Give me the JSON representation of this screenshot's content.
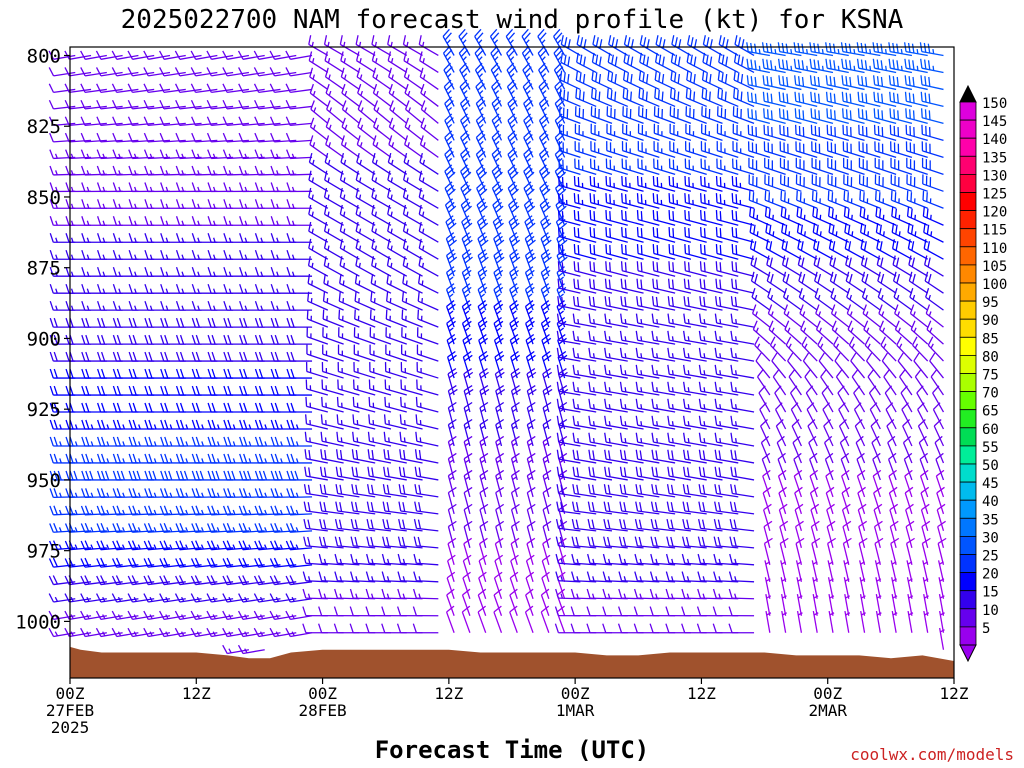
{
  "chart_data": {
    "type": "wind-barb-profile",
    "title": "2025022700 NAM forecast wind profile (kt) for KSNA",
    "xlabel": "Forecast Time (UTC)",
    "credit": "coolwx.com/models",
    "y_ticks": [
      "800",
      "825",
      "850",
      "875",
      "900",
      "925",
      "950",
      "975",
      "1000"
    ],
    "y_tick_values": [
      800,
      825,
      850,
      875,
      900,
      925,
      950,
      975,
      1000
    ],
    "x_ticks": [
      {
        "hour": 0,
        "lines": [
          "00Z",
          "27FEB",
          "2025"
        ]
      },
      {
        "hour": 12,
        "lines": [
          "12Z"
        ]
      },
      {
        "hour": 24,
        "lines": [
          "00Z",
          "28FEB"
        ]
      },
      {
        "hour": 36,
        "lines": [
          "12Z"
        ]
      },
      {
        "hour": 48,
        "lines": [
          "00Z",
          "1MAR"
        ]
      },
      {
        "hour": 60,
        "lines": [
          "12Z"
        ]
      },
      {
        "hour": 72,
        "lines": [
          "00Z",
          "2MAR"
        ]
      },
      {
        "hour": 84,
        "lines": [
          "12Z"
        ]
      }
    ],
    "x_range_hours": [
      0,
      84
    ],
    "y_range_hpa": [
      1020,
      797
    ],
    "colorbar": {
      "levels": [
        "150",
        "145",
        "140",
        "135",
        "130",
        "125",
        "120",
        "115",
        "110",
        "105",
        "100",
        "95",
        "90",
        "85",
        "80",
        "75",
        "70",
        "65",
        "60",
        "55",
        "50",
        "45",
        "40",
        "35",
        "30",
        "25",
        "20",
        "15",
        "10",
        "5"
      ],
      "colors": [
        "#dd00dd",
        "#ee00c8",
        "#ff00aa",
        "#ff0070",
        "#ff0040",
        "#ff0000",
        "#ff2200",
        "#ff4400",
        "#ff6600",
        "#ff8800",
        "#ffaa00",
        "#ffcc00",
        "#ffdd00",
        "#ffff00",
        "#ddff00",
        "#aaff00",
        "#66ff00",
        "#22ee22",
        "#00dd55",
        "#00ee99",
        "#00ddcc",
        "#00bbee",
        "#0099ff",
        "#0077ff",
        "#0055ff",
        "#0033ff",
        "#0000ff",
        "#3300ee",
        "#6600ee",
        "#9900ee"
      ]
    },
    "series": [
      {
        "hpa": 800,
        "segments": [
          {
            "from": 0,
            "to": 24,
            "dir": 260,
            "spd": 12
          },
          {
            "from": 24,
            "to": 36,
            "dir": 300,
            "spd": 14
          },
          {
            "from": 36,
            "to": 48,
            "dir": 330,
            "spd": 26
          },
          {
            "from": 48,
            "to": 66,
            "dir": 300,
            "spd": 28
          },
          {
            "from": 66,
            "to": 84,
            "dir": 280,
            "spd": 34
          }
        ]
      },
      {
        "hpa": 825,
        "segments": [
          {
            "from": 0,
            "to": 24,
            "dir": 265,
            "spd": 12
          },
          {
            "from": 24,
            "to": 36,
            "dir": 310,
            "spd": 14
          },
          {
            "from": 36,
            "to": 48,
            "dir": 335,
            "spd": 26
          },
          {
            "from": 48,
            "to": 66,
            "dir": 290,
            "spd": 28
          },
          {
            "from": 66,
            "to": 84,
            "dir": 285,
            "spd": 30
          }
        ]
      },
      {
        "hpa": 850,
        "segments": [
          {
            "from": 0,
            "to": 24,
            "dir": 270,
            "spd": 14
          },
          {
            "from": 24,
            "to": 36,
            "dir": 300,
            "spd": 16
          },
          {
            "from": 36,
            "to": 48,
            "dir": 335,
            "spd": 28
          },
          {
            "from": 48,
            "to": 66,
            "dir": 285,
            "spd": 24
          },
          {
            "from": 66,
            "to": 84,
            "dir": 290,
            "spd": 28
          }
        ]
      },
      {
        "hpa": 875,
        "segments": [
          {
            "from": 0,
            "to": 24,
            "dir": 270,
            "spd": 16
          },
          {
            "from": 24,
            "to": 36,
            "dir": 300,
            "spd": 16
          },
          {
            "from": 36,
            "to": 48,
            "dir": 340,
            "spd": 28
          },
          {
            "from": 48,
            "to": 66,
            "dir": 285,
            "spd": 20
          },
          {
            "from": 66,
            "to": 84,
            "dir": 300,
            "spd": 20
          }
        ]
      },
      {
        "hpa": 900,
        "segments": [
          {
            "from": 0,
            "to": 24,
            "dir": 270,
            "spd": 18
          },
          {
            "from": 24,
            "to": 36,
            "dir": 290,
            "spd": 16
          },
          {
            "from": 36,
            "to": 48,
            "dir": 340,
            "spd": 24
          },
          {
            "from": 48,
            "to": 66,
            "dir": 280,
            "spd": 16
          },
          {
            "from": 66,
            "to": 84,
            "dir": 310,
            "spd": 14
          }
        ]
      },
      {
        "hpa": 925,
        "segments": [
          {
            "from": 0,
            "to": 24,
            "dir": 270,
            "spd": 22
          },
          {
            "from": 24,
            "to": 36,
            "dir": 285,
            "spd": 16
          },
          {
            "from": 36,
            "to": 48,
            "dir": 345,
            "spd": 18
          },
          {
            "from": 48,
            "to": 66,
            "dir": 280,
            "spd": 16
          },
          {
            "from": 66,
            "to": 84,
            "dir": 330,
            "spd": 10
          }
        ]
      },
      {
        "hpa": 950,
        "segments": [
          {
            "from": 0,
            "to": 24,
            "dir": 270,
            "spd": 28
          },
          {
            "from": 24,
            "to": 36,
            "dir": 280,
            "spd": 18
          },
          {
            "from": 36,
            "to": 48,
            "dir": 345,
            "spd": 14
          },
          {
            "from": 48,
            "to": 66,
            "dir": 280,
            "spd": 18
          },
          {
            "from": 66,
            "to": 84,
            "dir": 340,
            "spd": 10
          }
        ]
      },
      {
        "hpa": 975,
        "segments": [
          {
            "from": 0,
            "to": 24,
            "dir": 265,
            "spd": 24
          },
          {
            "from": 24,
            "to": 36,
            "dir": 275,
            "spd": 18
          },
          {
            "from": 36,
            "to": 48,
            "dir": 345,
            "spd": 10
          },
          {
            "from": 48,
            "to": 66,
            "dir": 275,
            "spd": 18
          },
          {
            "from": 66,
            "to": 84,
            "dir": 345,
            "spd": 8
          }
        ]
      },
      {
        "hpa": 1000,
        "segments": [
          {
            "from": 0,
            "to": 24,
            "dir": 260,
            "spd": 14
          },
          {
            "from": 24,
            "to": 36,
            "dir": 270,
            "spd": 12
          },
          {
            "from": 36,
            "to": 48,
            "dir": 340,
            "spd": 8
          },
          {
            "from": 48,
            "to": 66,
            "dir": 270,
            "spd": 12
          },
          {
            "from": 66,
            "to": 84,
            "dir": 350,
            "spd": 6
          }
        ]
      }
    ],
    "terrain_hpa": [
      {
        "hour": 0,
        "hpa": 1009
      },
      {
        "hour": 1,
        "hpa": 1010
      },
      {
        "hour": 3,
        "hpa": 1011
      },
      {
        "hour": 6,
        "hpa": 1011
      },
      {
        "hour": 9,
        "hpa": 1011
      },
      {
        "hour": 12,
        "hpa": 1011
      },
      {
        "hour": 15,
        "hpa": 1012
      },
      {
        "hour": 17,
        "hpa": 1013
      },
      {
        "hour": 19,
        "hpa": 1013
      },
      {
        "hour": 21,
        "hpa": 1011
      },
      {
        "hour": 24,
        "hpa": 1010
      },
      {
        "hour": 27,
        "hpa": 1010
      },
      {
        "hour": 30,
        "hpa": 1010
      },
      {
        "hour": 33,
        "hpa": 1010
      },
      {
        "hour": 36,
        "hpa": 1010
      },
      {
        "hour": 39,
        "hpa": 1011
      },
      {
        "hour": 42,
        "hpa": 1011
      },
      {
        "hour": 45,
        "hpa": 1011
      },
      {
        "hour": 48,
        "hpa": 1011
      },
      {
        "hour": 51,
        "hpa": 1012
      },
      {
        "hour": 54,
        "hpa": 1012
      },
      {
        "hour": 57,
        "hpa": 1011
      },
      {
        "hour": 60,
        "hpa": 1011
      },
      {
        "hour": 63,
        "hpa": 1011
      },
      {
        "hour": 66,
        "hpa": 1011
      },
      {
        "hour": 69,
        "hpa": 1012
      },
      {
        "hour": 72,
        "hpa": 1012
      },
      {
        "hour": 75,
        "hpa": 1012
      },
      {
        "hour": 78,
        "hpa": 1013
      },
      {
        "hour": 81,
        "hpa": 1012
      },
      {
        "hour": 84,
        "hpa": 1014
      }
    ],
    "colors": {
      "terrain": "#a0522d",
      "axis": "#000000",
      "title": "#000000",
      "credit": "#cc2222"
    }
  }
}
